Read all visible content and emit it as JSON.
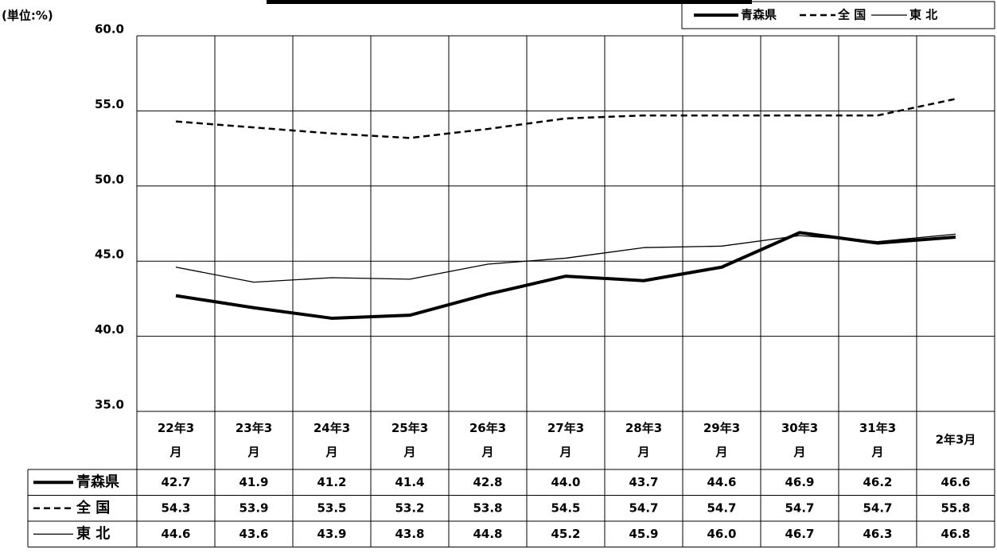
{
  "chart_data": {
    "type": "line",
    "unit_label": "(単位:%)",
    "categories": [
      "22年3月",
      "23年3月",
      "24年3月",
      "25年3月",
      "26年3月",
      "27年3月",
      "28年3月",
      "29年3月",
      "30年3月",
      "31年3月",
      "2年3月"
    ],
    "series": [
      {
        "name": "青森県",
        "color": "#000000",
        "line_style": "thick",
        "values": [
          42.7,
          41.9,
          41.2,
          41.4,
          42.8,
          44.0,
          43.7,
          44.6,
          46.9,
          46.2,
          46.6
        ],
        "value_labels": [
          "42.7",
          "41.9",
          "41.2",
          "41.4",
          "42.8",
          "44.0",
          "43.7",
          "44.6",
          "46.9",
          "46.2",
          "46.6"
        ]
      },
      {
        "name": "全 国",
        "color": "#000000",
        "line_style": "dashed",
        "values": [
          54.3,
          53.9,
          53.5,
          53.2,
          53.8,
          54.5,
          54.7,
          54.7,
          54.7,
          54.7,
          55.8
        ],
        "value_labels": [
          "54.3",
          "53.9",
          "53.5",
          "53.2",
          "53.8",
          "54.5",
          "54.7",
          "54.7",
          "54.7",
          "54.7",
          "55.8"
        ]
      },
      {
        "name": "東 北",
        "color": "#000000",
        "line_style": "thin",
        "values": [
          44.6,
          43.6,
          43.9,
          43.8,
          44.8,
          45.2,
          45.9,
          46.0,
          46.7,
          46.3,
          46.8
        ],
        "value_labels": [
          "44.6",
          "43.6",
          "43.9",
          "43.8",
          "44.8",
          "45.2",
          "45.9",
          "46.0",
          "46.7",
          "46.3",
          "46.8"
        ]
      }
    ],
    "ylim": [
      35,
      60
    ],
    "yticks": [
      {
        "value": 35,
        "label": "35.0"
      },
      {
        "value": 40,
        "label": "40.0"
      },
      {
        "value": 45,
        "label": "45.0"
      },
      {
        "value": 50,
        "label": "50.0"
      },
      {
        "value": 55,
        "label": "55.0"
      },
      {
        "value": 60,
        "label": "60.0"
      }
    ],
    "grid": true
  }
}
